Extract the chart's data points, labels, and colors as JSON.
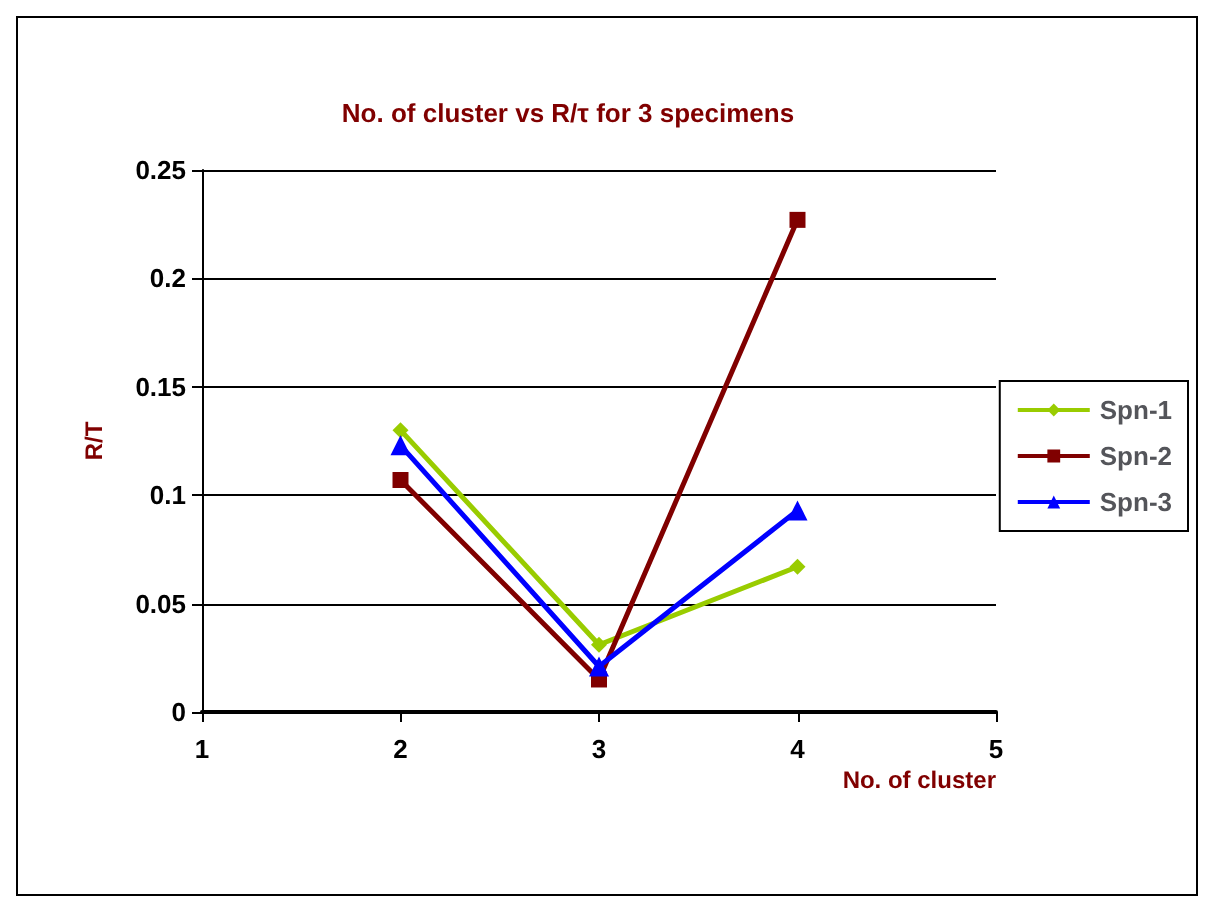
{
  "chart_data": {
    "type": "line",
    "title": "No. of cluster vs R/τ for 3 specimens",
    "xlabel": "No. of cluster",
    "ylabel": "R/T",
    "x": [
      2,
      3,
      4
    ],
    "series": [
      {
        "name": "Spn-1",
        "color": "#99cc00",
        "marker": "diamond",
        "values": [
          0.13,
          0.031,
          0.067
        ]
      },
      {
        "name": "Spn-2",
        "color": "#800000",
        "marker": "square",
        "values": [
          0.107,
          0.015,
          0.227
        ]
      },
      {
        "name": "Spn-3",
        "color": "#0000ff",
        "marker": "triangle",
        "values": [
          0.123,
          0.021,
          0.093
        ]
      }
    ],
    "xlim": [
      1,
      5
    ],
    "xticks": [
      1,
      2,
      3,
      4,
      5
    ],
    "ylim": [
      0,
      0.25
    ],
    "yticks": [
      0,
      0.05,
      0.1,
      0.15,
      0.2,
      0.25
    ],
    "grid": "y",
    "legend": "right"
  }
}
